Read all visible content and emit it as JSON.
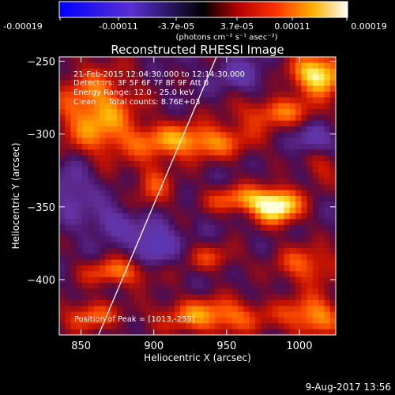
{
  "colorbar": {
    "tick_labels": [
      "-0.00019",
      "-0.00011",
      "-3.7e-05",
      "3.7e-05",
      "0.00011",
      "0.00019"
    ],
    "unit_label": "(photons cm⁻² s⁻¹ asec⁻²)"
  },
  "chart_data": {
    "type": "heatmap",
    "title": "Reconstructed RHESSI Image",
    "xlabel": "Heliocentric X (arcsec)",
    "ylabel": "Heliocentric Y (arcsec)",
    "xlim": [
      835,
      1025
    ],
    "ylim": [
      -438,
      -247
    ],
    "x_ticks": [
      850,
      900,
      950,
      1000
    ],
    "y_ticks": [
      -250,
      -300,
      -350,
      -400
    ],
    "annotations": [
      "21-Feb-2015 12:04:30.000 to 12:14:30.000",
      "Detectors: 3F 5F 6F 7F 8F 9F Att 0",
      "Energy Range: 12.0 - 25.0 keV",
      "Clean     Total counts: 8.76E+03"
    ],
    "peak_label": "Position of Peak = [1013,-259]",
    "peak_position": [
      1013,
      -259
    ],
    "limb_line": [
      [
        862,
        -438
      ],
      [
        943,
        -247
      ]
    ],
    "color_range": [
      -0.00019,
      0.00019
    ],
    "blobs": [
      {
        "x": 1013,
        "y": -259,
        "amp": 1.0,
        "sx": 14,
        "sy": 10
      },
      {
        "x": 985,
        "y": -350,
        "amp": 0.95,
        "sx": 12,
        "sy": 9
      },
      {
        "x": 860,
        "y": -285,
        "amp": 0.75,
        "sx": 20,
        "sy": 22
      },
      {
        "x": 925,
        "y": -305,
        "amp": 0.75,
        "sx": 30,
        "sy": 9
      },
      {
        "x": 985,
        "y": -285,
        "amp": 0.55,
        "sx": 22,
        "sy": 8
      },
      {
        "x": 960,
        "y": -345,
        "amp": 0.6,
        "sx": 18,
        "sy": 7
      },
      {
        "x": 900,
        "y": -335,
        "amp": 0.45,
        "sx": 10,
        "sy": 12
      },
      {
        "x": 875,
        "y": -395,
        "amp": 0.6,
        "sx": 18,
        "sy": 7
      },
      {
        "x": 1005,
        "y": -390,
        "amp": 0.55,
        "sx": 16,
        "sy": 10
      },
      {
        "x": 940,
        "y": -425,
        "amp": 0.7,
        "sx": 28,
        "sy": 9
      },
      {
        "x": 1010,
        "y": -425,
        "amp": 0.7,
        "sx": 14,
        "sy": 10
      },
      {
        "x": 855,
        "y": -425,
        "amp": 0.55,
        "sx": 14,
        "sy": 8
      },
      {
        "x": 940,
        "y": -385,
        "amp": 0.4,
        "sx": 14,
        "sy": 7
      },
      {
        "x": 1015,
        "y": -320,
        "amp": 0.4,
        "sx": 10,
        "sy": 10
      },
      {
        "x": 900,
        "y": -375,
        "amp": -0.55,
        "sx": 10,
        "sy": 10
      },
      {
        "x": 1010,
        "y": -305,
        "amp": -0.5,
        "sx": 10,
        "sy": 8
      },
      {
        "x": 845,
        "y": -335,
        "amp": -0.35,
        "sx": 10,
        "sy": 14
      },
      {
        "x": 960,
        "y": -260,
        "amp": -0.3,
        "sx": 12,
        "sy": 8
      },
      {
        "x": 870,
        "y": -360,
        "amp": -0.3,
        "sx": 12,
        "sy": 8
      }
    ]
  },
  "footer": {
    "timestamp": "9-Aug-2017 13:56"
  }
}
